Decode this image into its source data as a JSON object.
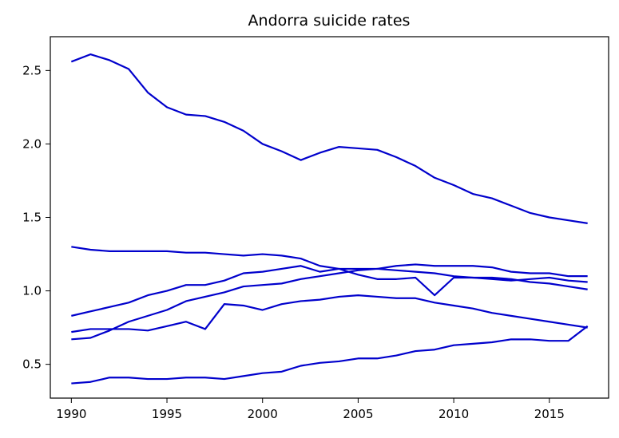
{
  "chart_data": {
    "type": "line",
    "title": "Andorra suicide rates",
    "xlabel": "",
    "ylabel": "",
    "xlim": [
      1988.9,
      2018.1
    ],
    "ylim": [
      0.27,
      2.73
    ],
    "xticks": [
      1990,
      1995,
      2000,
      2005,
      2010,
      2015
    ],
    "yticks": [
      0.5,
      1.0,
      1.5,
      2.0,
      2.5
    ],
    "ytick_labels": [
      "0.5",
      "1.0",
      "1.5",
      "2.0",
      "2.5"
    ],
    "grid": false,
    "legend": "none",
    "line_color": "#0000cc",
    "x": [
      1990,
      1991,
      1992,
      1993,
      1994,
      1995,
      1996,
      1997,
      1998,
      1999,
      2000,
      2001,
      2002,
      2003,
      2004,
      2005,
      2006,
      2007,
      2008,
      2009,
      2010,
      2011,
      2012,
      2013,
      2014,
      2015,
      2016,
      2017
    ],
    "series": [
      {
        "values": [
          2.56,
          2.61,
          2.57,
          2.51,
          2.35,
          2.25,
          2.2,
          2.19,
          2.15,
          2.09,
          2.0,
          1.95,
          1.89,
          1.94,
          1.98,
          1.97,
          1.96,
          1.91,
          1.85,
          1.77,
          1.72,
          1.66,
          1.63,
          1.58,
          1.53,
          1.5,
          1.48,
          1.46
        ]
      },
      {
        "values": [
          1.3,
          1.28,
          1.27,
          1.27,
          1.27,
          1.27,
          1.26,
          1.26,
          1.25,
          1.24,
          1.25,
          1.24,
          1.22,
          1.17,
          1.15,
          1.11,
          1.08,
          1.08,
          1.09,
          0.97,
          1.09,
          1.09,
          1.08,
          1.07,
          1.08,
          1.09,
          1.07,
          1.06
        ]
      },
      {
        "values": [
          0.83,
          0.86,
          0.89,
          0.92,
          0.97,
          1.0,
          1.04,
          1.04,
          1.07,
          1.12,
          1.13,
          1.15,
          1.17,
          1.13,
          1.15,
          1.15,
          1.15,
          1.17,
          1.18,
          1.17,
          1.17,
          1.17,
          1.16,
          1.13,
          1.12,
          1.12,
          1.1,
          1.1
        ]
      },
      {
        "values": [
          0.67,
          0.68,
          0.73,
          0.79,
          0.83,
          0.87,
          0.93,
          0.96,
          0.99,
          1.03,
          1.04,
          1.05,
          1.08,
          1.1,
          1.12,
          1.14,
          1.15,
          1.14,
          1.13,
          1.12,
          1.1,
          1.09,
          1.09,
          1.08,
          1.06,
          1.05,
          1.03,
          1.01
        ]
      },
      {
        "values": [
          0.72,
          0.74,
          0.74,
          0.74,
          0.73,
          0.76,
          0.79,
          0.74,
          0.91,
          0.9,
          0.87,
          0.91,
          0.93,
          0.94,
          0.96,
          0.97,
          0.96,
          0.95,
          0.95,
          0.92,
          0.9,
          0.88,
          0.85,
          0.83,
          0.81,
          0.79,
          0.77,
          0.75
        ]
      },
      {
        "values": [
          0.37,
          0.38,
          0.41,
          0.41,
          0.4,
          0.4,
          0.41,
          0.41,
          0.4,
          0.42,
          0.44,
          0.45,
          0.49,
          0.51,
          0.52,
          0.54,
          0.54,
          0.56,
          0.59,
          0.6,
          0.63,
          0.64,
          0.65,
          0.67,
          0.67,
          0.66,
          0.66,
          0.76
        ]
      }
    ]
  }
}
